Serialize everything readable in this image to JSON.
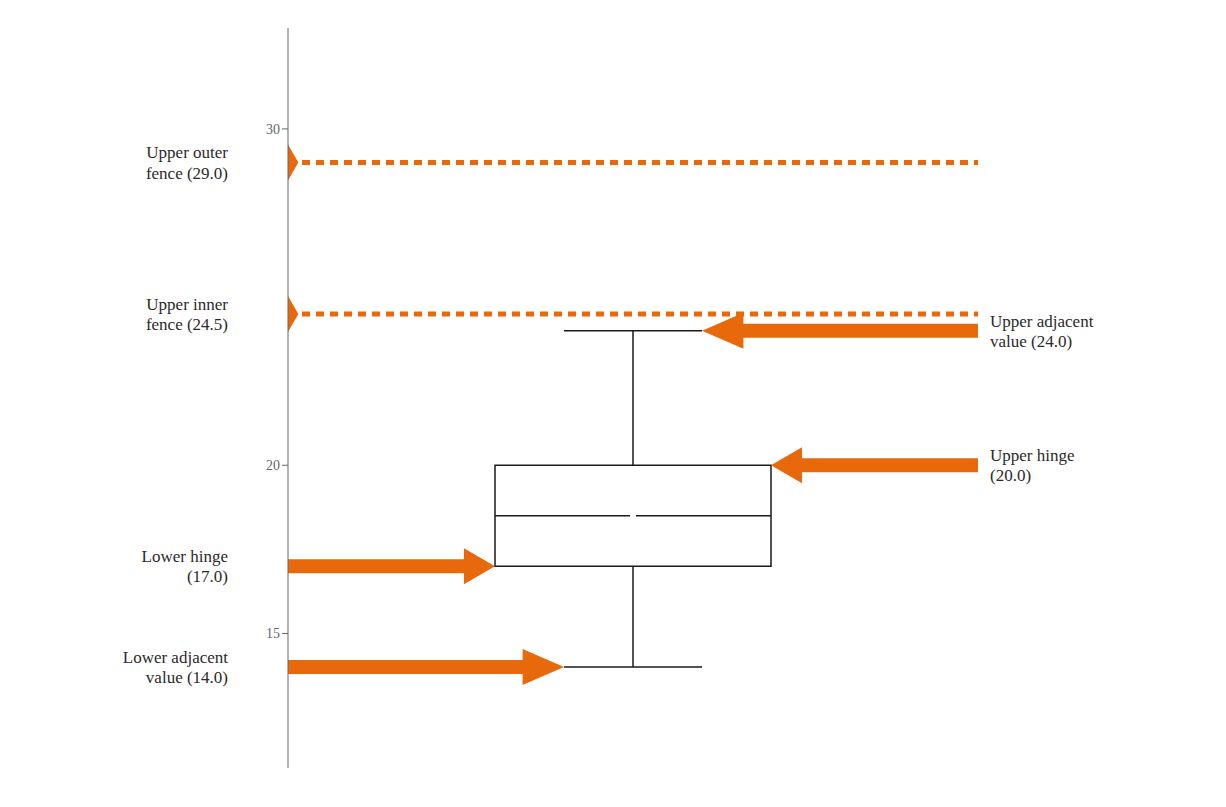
{
  "chart_data": {
    "type": "box",
    "tick_labels": "y",
    "ylim": [
      11,
      33
    ],
    "yticks": [
      15,
      20,
      30
    ],
    "box": {
      "lower_adjacent": 14.0,
      "lower_hinge": 17.0,
      "median": 18.5,
      "upper_hinge": 20.0,
      "upper_adjacent": 24.0,
      "color": "#1a1a1a"
    },
    "fences": {
      "upper_inner_fence": 24.5,
      "upper_outer_fence": 29.0,
      "color": "#E8680C"
    },
    "annotations": {
      "upper_outer_fence": "Upper outer\nfence (29.0)",
      "upper_inner_fence": "Upper inner\nfence (24.5)",
      "upper_adjacent": "Upper adjacent\nvalue (24.0)",
      "upper_hinge": "Upper hinge\n(20.0)",
      "lower_hinge": "Lower hinge\n(17.0)",
      "lower_adjacent": "Lower adjacent\nvalue (14.0)"
    }
  }
}
